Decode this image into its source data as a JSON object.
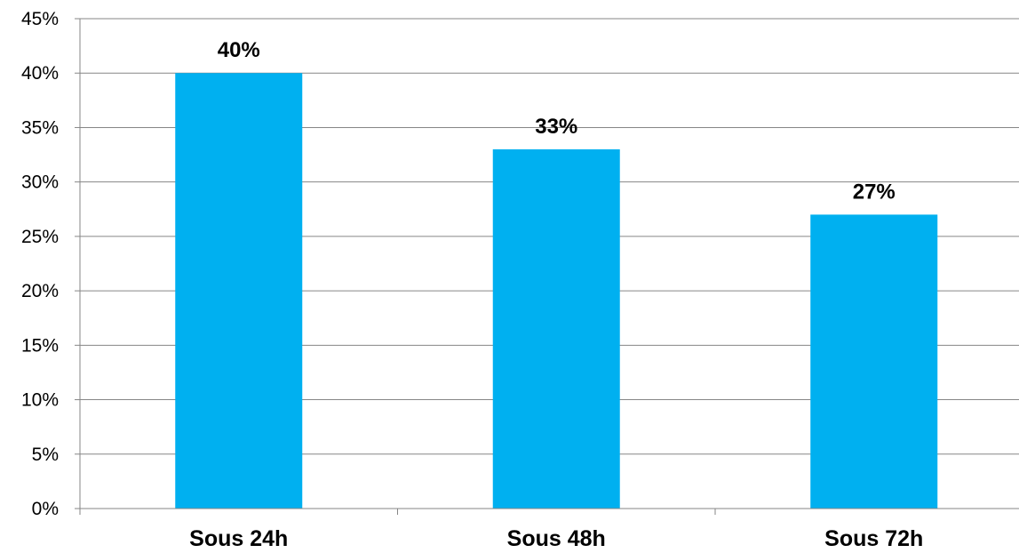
{
  "chart_data": {
    "type": "bar",
    "categories": [
      "Sous 24h",
      "Sous 48h",
      "Sous 72h"
    ],
    "values": [
      40,
      33,
      27
    ],
    "data_labels": [
      "40%",
      "33%",
      "27%"
    ],
    "y_ticks": [
      0,
      5,
      10,
      15,
      20,
      25,
      30,
      35,
      40,
      45
    ],
    "y_tick_labels": [
      "0%",
      "5%",
      "10%",
      "15%",
      "20%",
      "25%",
      "30%",
      "35%",
      "40%",
      "45%"
    ],
    "ylim": [
      0,
      45
    ],
    "grid": true,
    "legend": "none",
    "bar_color": "#00B0F0"
  }
}
